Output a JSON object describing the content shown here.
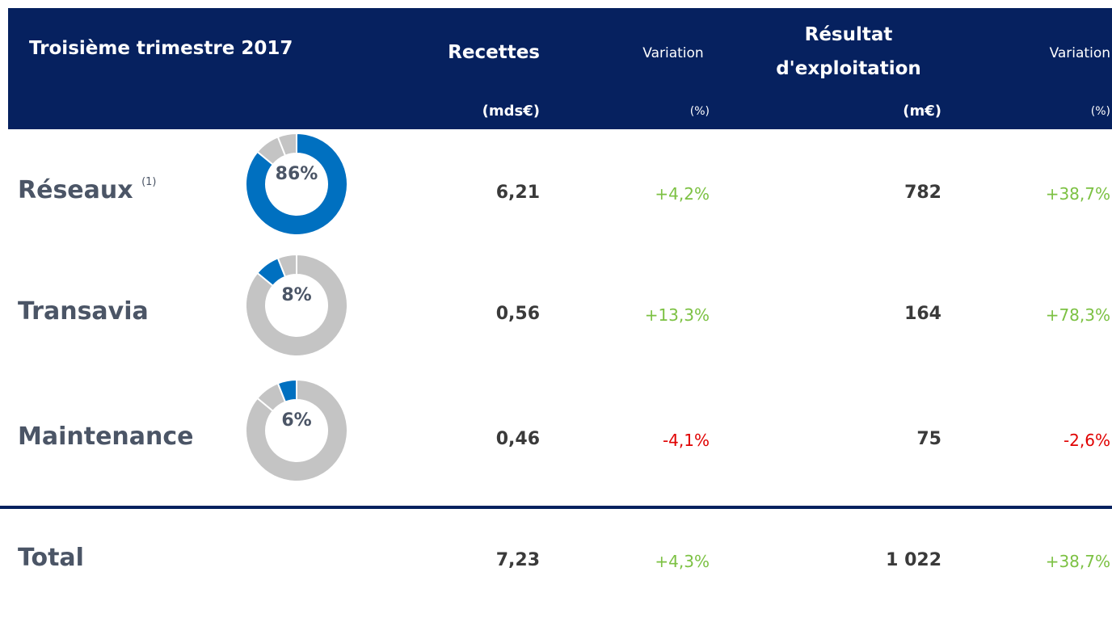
{
  "header": {
    "title": "Troisième trimestre 2017",
    "columns": [
      {
        "title": "Recettes",
        "unit": "(mds€)"
      },
      {
        "title": "Variation",
        "unit": "(%)"
      },
      {
        "title": "Résultat d'exploitation",
        "unit": "(m€)"
      },
      {
        "title": "Variation",
        "unit": "(%)"
      }
    ]
  },
  "table": {
    "rows": [
      {
        "name": "Réseaux",
        "note": "(1)",
        "share": {
          "value": 86,
          "label": "86%"
        },
        "revenue": "6,21",
        "revenue_change": "+4,2%",
        "result": "782",
        "result_change": "+38,7%"
      },
      {
        "name": "Transavia",
        "share": {
          "value": 8,
          "label": "8%"
        },
        "revenue": "0,56",
        "revenue_change": "+13,3%",
        "result": "164",
        "result_change": "+78,3%"
      },
      {
        "name": "Maintenance",
        "share": {
          "value": 6,
          "label": "6%"
        },
        "revenue": "0,46",
        "revenue_change": "-4,1%",
        "result": "75",
        "result_change": "-2,6%"
      }
    ],
    "total": {
      "name": "Total",
      "revenue": "7,23",
      "revenue_change": "+4,3%",
      "result": "1 022",
      "result_change": "+38,7%"
    }
  }
}
